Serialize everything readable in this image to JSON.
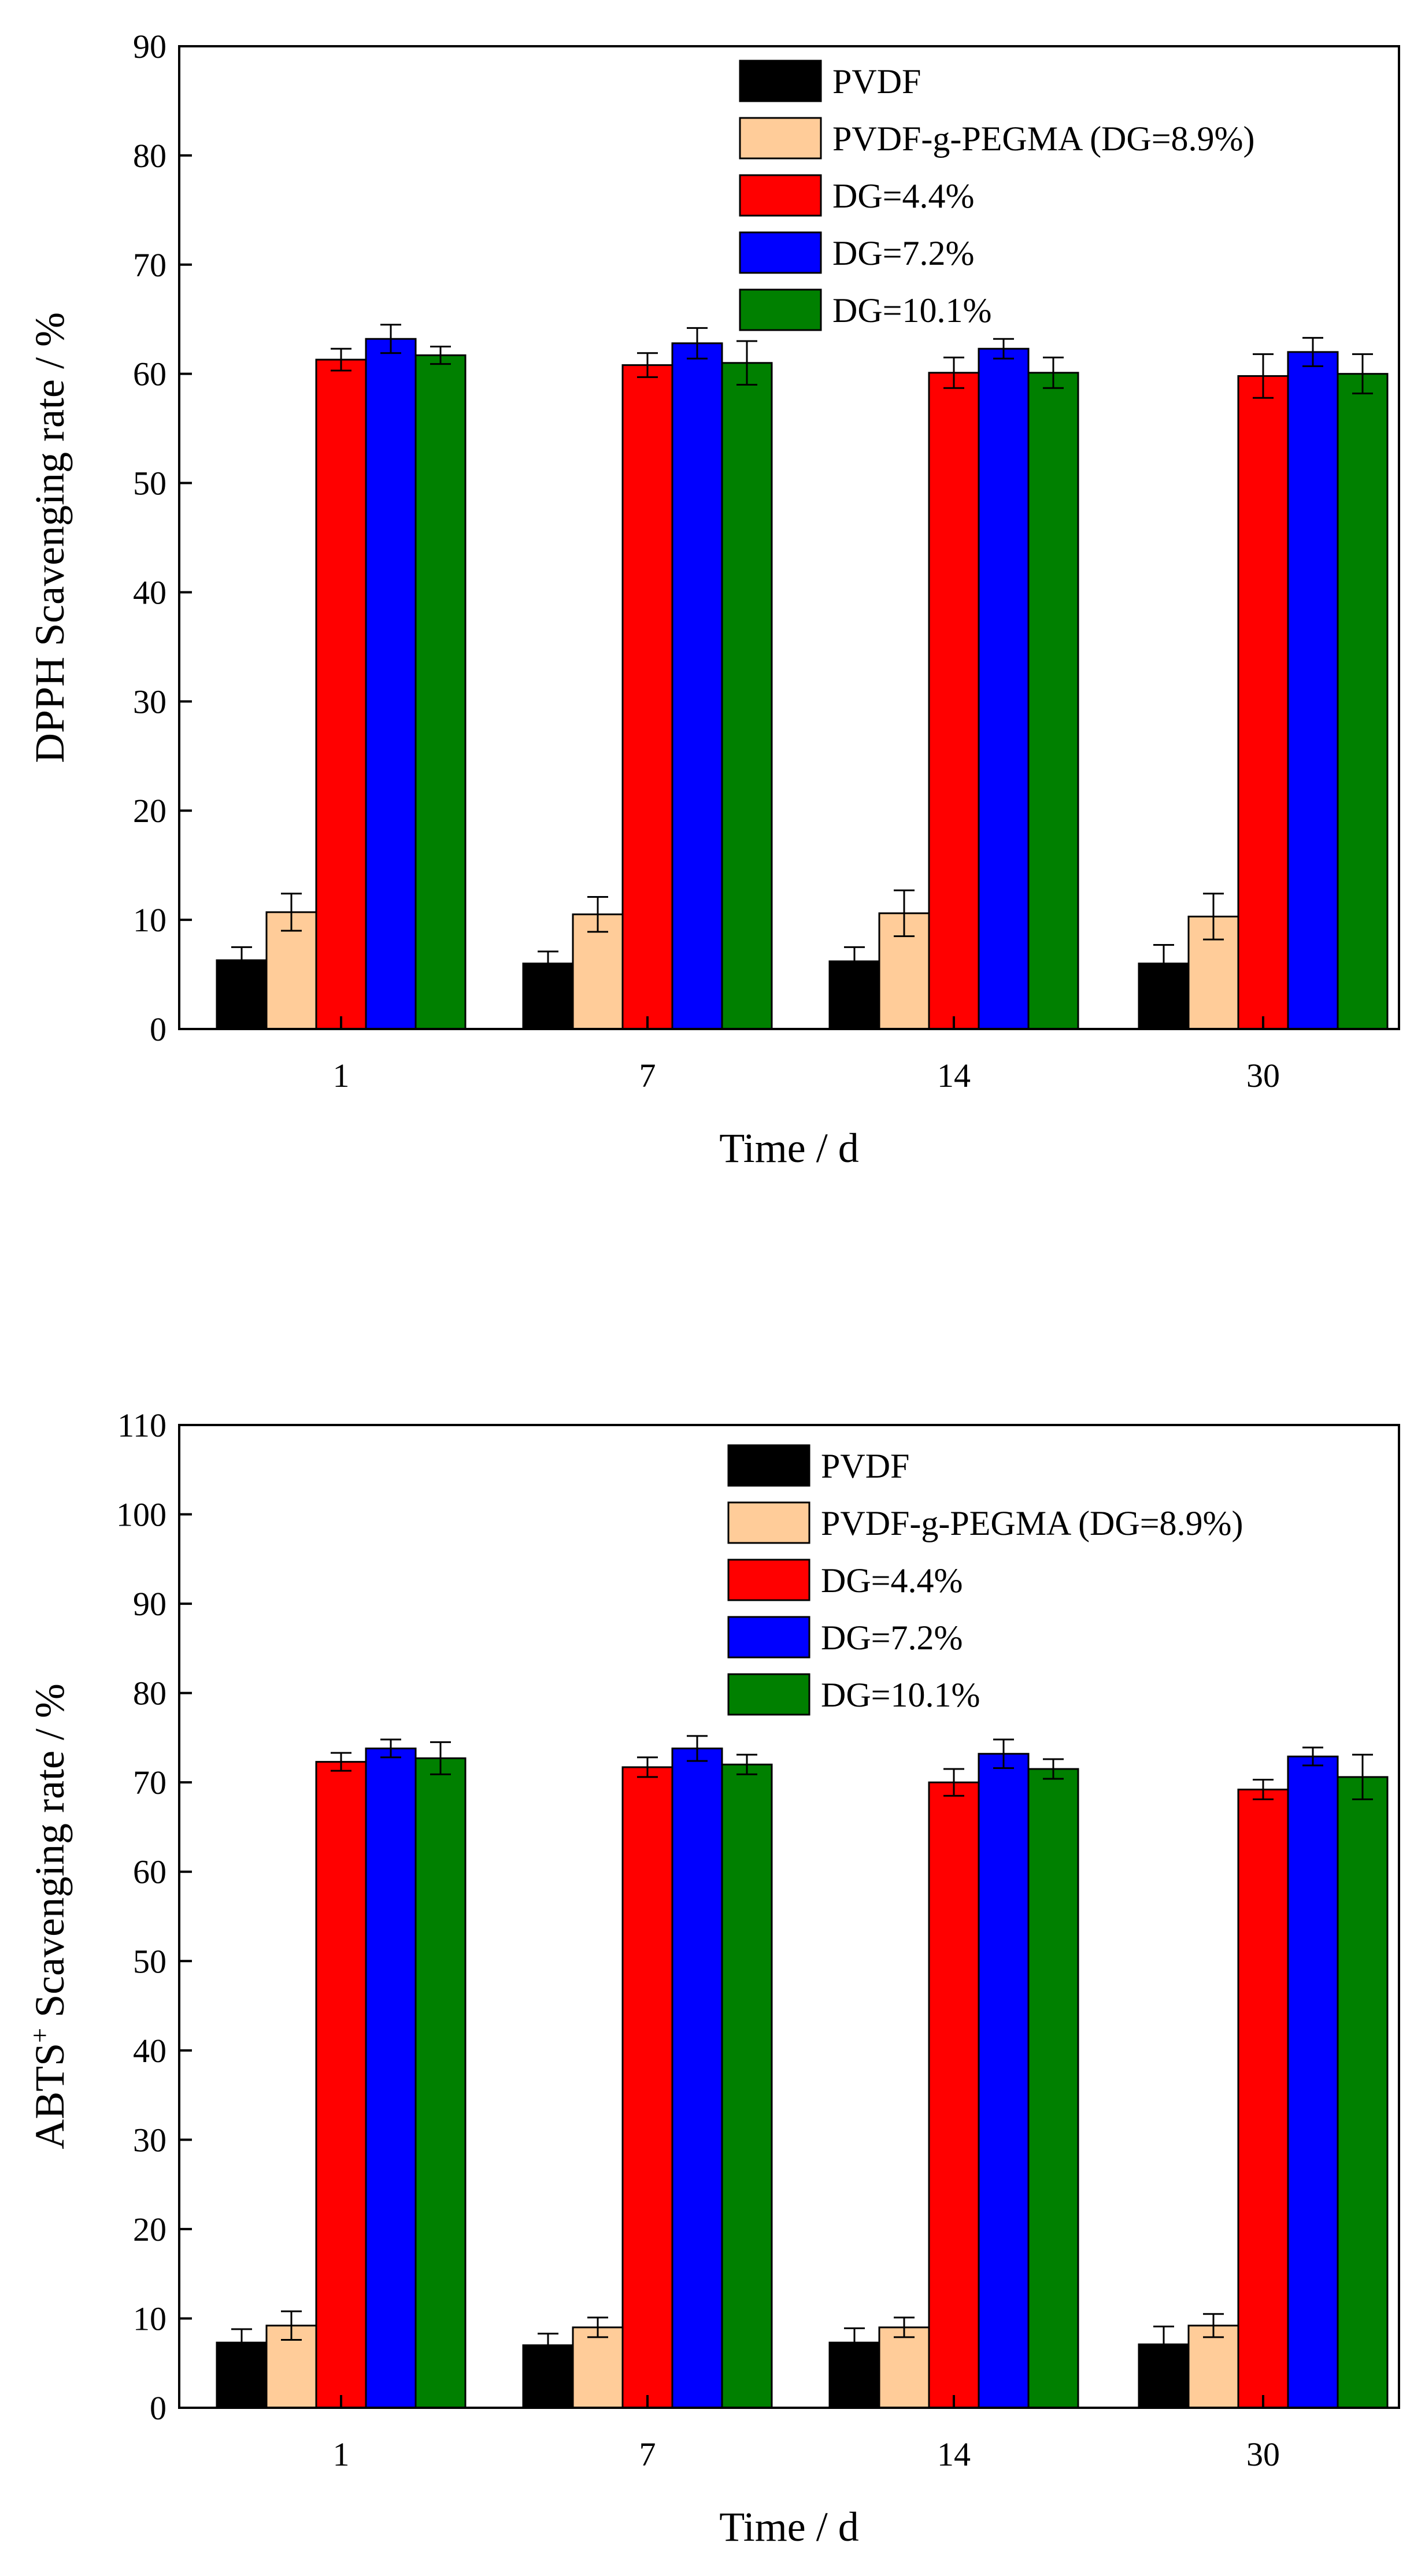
{
  "chart_data": [
    {
      "type": "bar",
      "title": "",
      "xlabel": "Time / d",
      "ylabel": "DPPH Scavenging rate / %",
      "ylabel_sup": "",
      "ylabel_rest": "",
      "categories": [
        "1",
        "7",
        "14",
        "30"
      ],
      "ylim": [
        0,
        90
      ],
      "yticks": [
        0,
        10,
        20,
        30,
        40,
        50,
        60,
        70,
        80,
        90
      ],
      "legend_position": "top-right",
      "series": [
        {
          "name": "PVDF",
          "color": "#000000",
          "values": [
            6.3,
            6.0,
            6.2,
            6.0
          ],
          "errors": [
            1.2,
            1.1,
            1.3,
            1.7
          ]
        },
        {
          "name": "PVDF-g-PEGMA (DG=8.9%)",
          "color": "#FFCC99",
          "values": [
            10.7,
            10.5,
            10.6,
            10.3
          ],
          "errors": [
            1.7,
            1.6,
            2.1,
            2.1
          ]
        },
        {
          "name": "DG=4.4%",
          "color": "#FF0000",
          "values": [
            61.3,
            60.8,
            60.1,
            59.8
          ],
          "errors": [
            1.0,
            1.1,
            1.4,
            2.0
          ]
        },
        {
          "name": "DG=7.2%",
          "color": "#0000FF",
          "values": [
            63.2,
            62.8,
            62.3,
            62.0
          ],
          "errors": [
            1.3,
            1.4,
            0.9,
            1.3
          ]
        },
        {
          "name": "DG=10.1%",
          "color": "#008000",
          "values": [
            61.7,
            61.0,
            60.1,
            60.0
          ],
          "errors": [
            0.8,
            2.0,
            1.4,
            1.8
          ]
        }
      ]
    },
    {
      "type": "bar",
      "title": "",
      "xlabel": "Time / d",
      "ylabel": "ABTS+ Scavenging rate / %",
      "ylabel_main": "ABTS",
      "ylabel_sup": "+",
      "ylabel_rest": " Scavenging rate / %",
      "categories": [
        "1",
        "7",
        "14",
        "30"
      ],
      "ylim": [
        0,
        110
      ],
      "yticks": [
        0,
        10,
        20,
        30,
        40,
        50,
        60,
        70,
        80,
        90,
        100,
        110
      ],
      "legend_position": "top-right",
      "series": [
        {
          "name": "PVDF",
          "color": "#000000",
          "values": [
            7.3,
            7.0,
            7.3,
            7.1
          ],
          "errors": [
            1.5,
            1.3,
            1.6,
            2.0
          ]
        },
        {
          "name": "PVDF-g-PEGMA (DG=8.9%)",
          "color": "#FFCC99",
          "values": [
            9.2,
            9.0,
            9.0,
            9.2
          ],
          "errors": [
            1.6,
            1.1,
            1.1,
            1.3
          ]
        },
        {
          "name": "DG=4.4%",
          "color": "#FF0000",
          "values": [
            72.3,
            71.7,
            70.0,
            69.2
          ],
          "errors": [
            1.0,
            1.1,
            1.5,
            1.1
          ]
        },
        {
          "name": "DG=7.2%",
          "color": "#0000FF",
          "values": [
            73.8,
            73.8,
            73.2,
            72.9
          ],
          "errors": [
            1.0,
            1.4,
            1.6,
            1.0
          ]
        },
        {
          "name": "DG=10.1%",
          "color": "#008000",
          "values": [
            72.7,
            72.0,
            71.5,
            70.6
          ],
          "errors": [
            1.8,
            1.1,
            1.1,
            2.5
          ]
        }
      ]
    }
  ]
}
